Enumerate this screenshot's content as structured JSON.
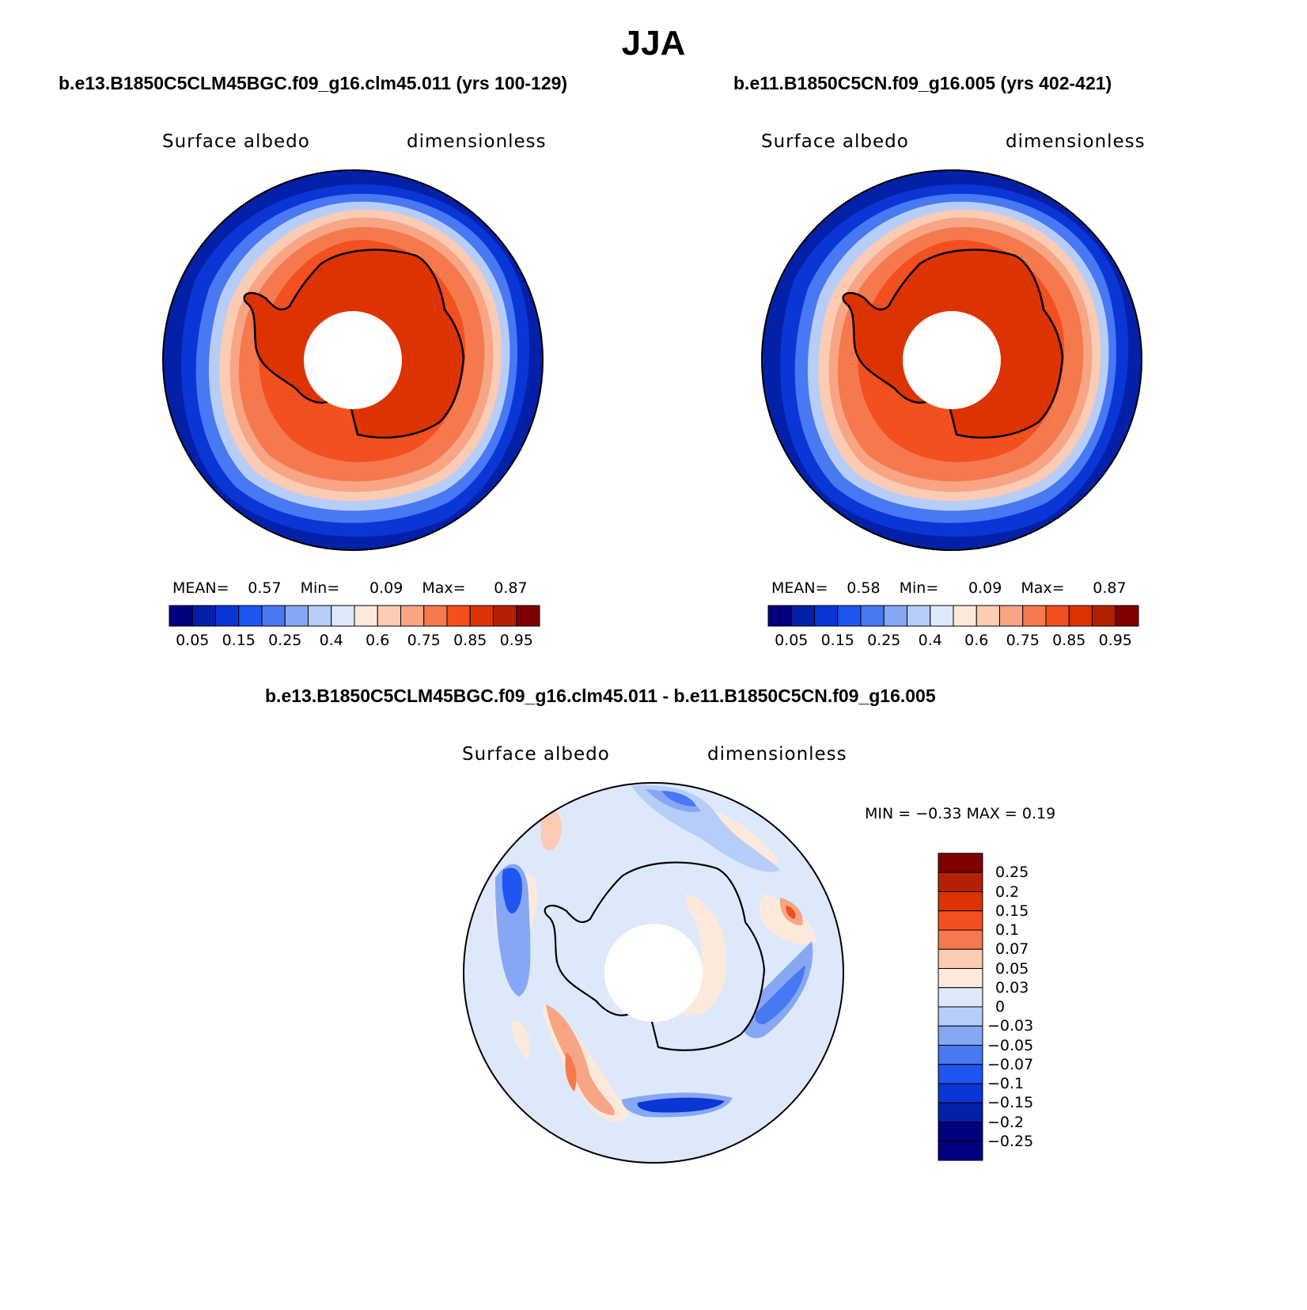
{
  "page": {
    "title": "JJA"
  },
  "panels": [
    {
      "case_title": "b.e13.B1850C5CLM45BGC.f09_g16.clm45.011 (yrs 100-129)",
      "var_label": "Surface albedo",
      "units_label": "dimensionless",
      "stats": {
        "mean_label": "MEAN=",
        "mean": "0.57",
        "min_label": "Min=",
        "min": "0.09",
        "max_label": "Max=",
        "max": "0.87"
      }
    },
    {
      "case_title": "b.e11.B1850C5CN.f09_g16.005 (yrs 402-421)",
      "var_label": "Surface albedo",
      "units_label": "dimensionless",
      "stats": {
        "mean_label": "MEAN=",
        "mean": "0.58",
        "min_label": "Min=",
        "min": "0.09",
        "max_label": "Max=",
        "max": "0.87"
      }
    }
  ],
  "diff_panel": {
    "title": "b.e13.B1850C5CLM45BGC.f09_g16.clm45.011 - b.e11.B1850C5CN.f09_g16.005",
    "var_label": "Surface albedo",
    "units_label": "dimensionless",
    "minmax_text": "MIN =   −0.33 MAX =    0.19"
  },
  "chart_data": [
    {
      "type": "heatmap",
      "projection": "south-polar-stereographic",
      "title": "b.e13.B1850C5CLM45BGC.f09_g16.clm45.011 (yrs 100-129)",
      "variable": "Surface albedo",
      "units": "dimensionless",
      "mean": 0.57,
      "min": 0.09,
      "max": 0.87,
      "colorbar_ticks": [
        "0.05",
        "0.15",
        "0.25",
        "0.4",
        "0.6",
        "0.75",
        "0.85",
        "0.95"
      ],
      "colorbar_orientation": "horizontal"
    },
    {
      "type": "heatmap",
      "projection": "south-polar-stereographic",
      "title": "b.e11.B1850C5CN.f09_g16.005 (yrs 402-421)",
      "variable": "Surface albedo",
      "units": "dimensionless",
      "mean": 0.58,
      "min": 0.09,
      "max": 0.87,
      "colorbar_ticks": [
        "0.05",
        "0.15",
        "0.25",
        "0.4",
        "0.6",
        "0.75",
        "0.85",
        "0.95"
      ],
      "colorbar_orientation": "horizontal"
    },
    {
      "type": "heatmap",
      "projection": "south-polar-stereographic",
      "title": "b.e13.B1850C5CLM45BGC.f09_g16.clm45.011 - b.e11.B1850C5CN.f09_g16.005",
      "variable": "Surface albedo",
      "units": "dimensionless",
      "min": -0.33,
      "max": 0.19,
      "colorbar_ticks": [
        "0.25",
        "0.2",
        "0.15",
        "0.1",
        "0.07",
        "0.05",
        "0.03",
        "0",
        "−0.03",
        "−0.05",
        "−0.07",
        "−0.1",
        "−0.15",
        "−0.2",
        "−0.25"
      ],
      "colorbar_orientation": "vertical"
    }
  ],
  "colors": {
    "abs_scale": [
      "#00007f",
      "#0320a8",
      "#0a36d6",
      "#1f55f0",
      "#4878f2",
      "#86a8f4",
      "#b6cdf7",
      "#dde9fb",
      "#fde9dc",
      "#fbcbb4",
      "#f7a585",
      "#f5794d",
      "#f44f1e",
      "#dd3302",
      "#b52004",
      "#7f0000"
    ],
    "diff_scale": [
      "#7f0000",
      "#b52004",
      "#dd3302",
      "#f44f1e",
      "#f5794d",
      "#fbcbb4",
      "#fde9dc",
      "#dde9fb",
      "#b6cdf7",
      "#86a8f4",
      "#4878f2",
      "#1f55f0",
      "#0a36d6",
      "#0320a8",
      "#00007f",
      "#00007f"
    ]
  }
}
